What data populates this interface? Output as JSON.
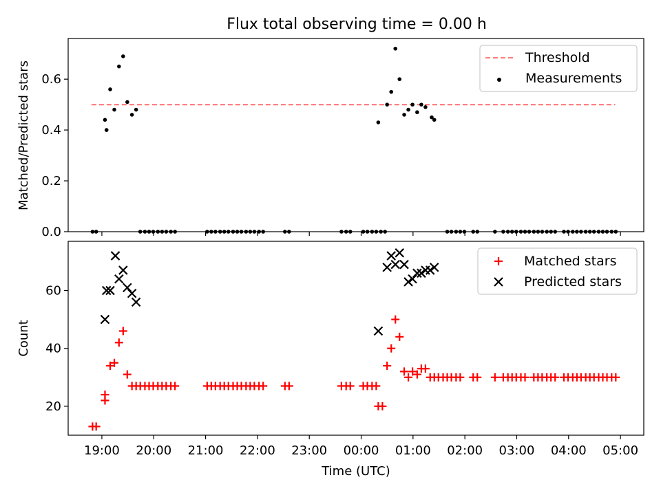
{
  "chart_data": [
    {
      "type": "scatter",
      "title": "Flux total observing time = 0.00 h",
      "xlabel": "",
      "ylabel": "Matched/Predicted stars",
      "ylim": [
        0,
        0.76
      ],
      "yticks": [
        0.0,
        0.2,
        0.4,
        0.6
      ],
      "x_unit": "hours after 00:00 UTC of first night",
      "xlim": [
        18.35,
        29.45
      ],
      "xticks": [
        19,
        20,
        21,
        22,
        23,
        24,
        25,
        26,
        27,
        28,
        29
      ],
      "xtick_labels": [
        "",
        "",
        "",
        "",
        "",
        "",
        "",
        "",
        "",
        "",
        ""
      ],
      "legend": {
        "placement": "top-right",
        "entries": [
          "Threshold",
          "Measurements"
        ]
      },
      "threshold": {
        "name": "Threshold",
        "y": 0.5,
        "x_start": 18.8,
        "x_end": 28.9,
        "color": "#ff7f7f",
        "style": "dashed"
      },
      "series": [
        {
          "name": "Measurements",
          "color": "#000000",
          "marker": "dot",
          "points": [
            [
              18.82,
              0
            ],
            [
              18.89,
              0
            ],
            [
              19.06,
              0.44
            ],
            [
              19.09,
              0.4
            ],
            [
              19.16,
              0.56
            ],
            [
              19.24,
              0.48
            ],
            [
              19.33,
              0.65
            ],
            [
              19.41,
              0.69
            ],
            [
              19.49,
              0.51
            ],
            [
              19.58,
              0.46
            ],
            [
              19.66,
              0.48
            ],
            [
              19.74,
              0
            ],
            [
              19.83,
              0
            ],
            [
              19.91,
              0
            ],
            [
              19.99,
              0
            ],
            [
              20.08,
              0
            ],
            [
              20.16,
              0
            ],
            [
              20.24,
              0
            ],
            [
              20.33,
              0
            ],
            [
              20.41,
              0
            ],
            [
              21.03,
              0
            ],
            [
              21.11,
              0
            ],
            [
              21.19,
              0
            ],
            [
              21.28,
              0
            ],
            [
              21.36,
              0
            ],
            [
              21.44,
              0
            ],
            [
              21.53,
              0
            ],
            [
              21.61,
              0
            ],
            [
              21.69,
              0
            ],
            [
              21.78,
              0
            ],
            [
              21.86,
              0
            ],
            [
              21.94,
              0
            ],
            [
              22.03,
              0
            ],
            [
              22.11,
              0
            ],
            [
              22.53,
              0
            ],
            [
              22.61,
              0
            ],
            [
              23.62,
              0
            ],
            [
              23.71,
              0
            ],
            [
              23.79,
              0
            ],
            [
              24.04,
              0
            ],
            [
              24.12,
              0
            ],
            [
              24.21,
              0
            ],
            [
              24.29,
              0
            ],
            [
              24.33,
              0.43
            ],
            [
              24.38,
              0
            ],
            [
              24.46,
              0
            ],
            [
              24.5,
              0.5
            ],
            [
              24.58,
              0.55
            ],
            [
              24.66,
              0.72
            ],
            [
              24.74,
              0.6
            ],
            [
              24.83,
              0.46
            ],
            [
              24.91,
              0.48
            ],
            [
              24.99,
              0.5
            ],
            [
              25.08,
              0.47
            ],
            [
              25.16,
              0.5
            ],
            [
              25.24,
              0.49
            ],
            [
              25.36,
              0.45
            ],
            [
              25.41,
              0.44
            ],
            [
              25.66,
              0
            ],
            [
              25.74,
              0
            ],
            [
              25.83,
              0
            ],
            [
              25.91,
              0
            ],
            [
              25.99,
              0
            ],
            [
              26.16,
              0
            ],
            [
              26.24,
              0
            ],
            [
              26.58,
              0
            ],
            [
              26.74,
              0
            ],
            [
              26.83,
              0
            ],
            [
              26.91,
              0
            ],
            [
              26.99,
              0
            ],
            [
              27.08,
              0
            ],
            [
              27.16,
              0
            ],
            [
              27.24,
              0
            ],
            [
              27.33,
              0
            ],
            [
              27.41,
              0
            ],
            [
              27.49,
              0
            ],
            [
              27.58,
              0
            ],
            [
              27.66,
              0
            ],
            [
              27.74,
              0
            ],
            [
              27.91,
              0
            ],
            [
              27.99,
              0
            ],
            [
              28.08,
              0
            ],
            [
              28.16,
              0
            ],
            [
              28.24,
              0
            ],
            [
              28.33,
              0
            ],
            [
              28.41,
              0
            ],
            [
              28.49,
              0
            ],
            [
              28.58,
              0
            ],
            [
              28.66,
              0
            ],
            [
              28.74,
              0
            ],
            [
              28.83,
              0
            ],
            [
              28.91,
              0
            ]
          ]
        }
      ]
    },
    {
      "type": "scatter",
      "title": "",
      "xlabel": "Time (UTC)",
      "ylabel": "Count",
      "ylim": [
        10,
        77
      ],
      "yticks": [
        20,
        40,
        60
      ],
      "x_unit": "hours after 00:00 UTC of first night",
      "xlim": [
        18.35,
        29.45
      ],
      "xticks": [
        19,
        20,
        21,
        22,
        23,
        24,
        25,
        26,
        27,
        28,
        29
      ],
      "xtick_labels": [
        "19:00",
        "20:00",
        "21:00",
        "22:00",
        "23:00",
        "00:00",
        "01:00",
        "02:00",
        "03:00",
        "04:00",
        "05:00"
      ],
      "legend": {
        "placement": "top-right",
        "entries": [
          "Matched stars",
          "Predicted stars"
        ]
      },
      "series": [
        {
          "name": "Matched stars",
          "color": "#ff0000",
          "marker": "plus",
          "points": [
            [
              18.82,
              13
            ],
            [
              18.89,
              13
            ],
            [
              19.06,
              24
            ],
            [
              19.06,
              22
            ],
            [
              19.16,
              34
            ],
            [
              19.24,
              35
            ],
            [
              19.33,
              42
            ],
            [
              19.41,
              46
            ],
            [
              19.49,
              31
            ],
            [
              19.58,
              27
            ],
            [
              19.66,
              27
            ],
            [
              19.74,
              27
            ],
            [
              19.83,
              27
            ],
            [
              19.91,
              27
            ],
            [
              19.99,
              27
            ],
            [
              20.08,
              27
            ],
            [
              20.16,
              27
            ],
            [
              20.24,
              27
            ],
            [
              20.33,
              27
            ],
            [
              20.41,
              27
            ],
            [
              21.03,
              27
            ],
            [
              21.11,
              27
            ],
            [
              21.19,
              27
            ],
            [
              21.28,
              27
            ],
            [
              21.36,
              27
            ],
            [
              21.44,
              27
            ],
            [
              21.53,
              27
            ],
            [
              21.61,
              27
            ],
            [
              21.69,
              27
            ],
            [
              21.78,
              27
            ],
            [
              21.86,
              27
            ],
            [
              21.94,
              27
            ],
            [
              22.03,
              27
            ],
            [
              22.11,
              27
            ],
            [
              22.53,
              27
            ],
            [
              22.61,
              27
            ],
            [
              23.62,
              27
            ],
            [
              23.71,
              27
            ],
            [
              23.79,
              27
            ],
            [
              24.04,
              27
            ],
            [
              24.12,
              27
            ],
            [
              24.21,
              27
            ],
            [
              24.29,
              27
            ],
            [
              24.33,
              20
            ],
            [
              24.41,
              20
            ],
            [
              24.5,
              34
            ],
            [
              24.58,
              40
            ],
            [
              24.66,
              50
            ],
            [
              24.74,
              44
            ],
            [
              24.83,
              32
            ],
            [
              24.91,
              30
            ],
            [
              24.99,
              32
            ],
            [
              25.08,
              31
            ],
            [
              25.16,
              33
            ],
            [
              25.24,
              33
            ],
            [
              25.33,
              30
            ],
            [
              25.41,
              30
            ],
            [
              25.49,
              30
            ],
            [
              25.58,
              30
            ],
            [
              25.66,
              30
            ],
            [
              25.74,
              30
            ],
            [
              25.83,
              30
            ],
            [
              25.91,
              30
            ],
            [
              26.16,
              30
            ],
            [
              26.24,
              30
            ],
            [
              26.58,
              30
            ],
            [
              26.74,
              30
            ],
            [
              26.83,
              30
            ],
            [
              26.91,
              30
            ],
            [
              26.99,
              30
            ],
            [
              27.08,
              30
            ],
            [
              27.16,
              30
            ],
            [
              27.33,
              30
            ],
            [
              27.41,
              30
            ],
            [
              27.49,
              30
            ],
            [
              27.58,
              30
            ],
            [
              27.66,
              30
            ],
            [
              27.74,
              30
            ],
            [
              27.91,
              30
            ],
            [
              27.99,
              30
            ],
            [
              28.08,
              30
            ],
            [
              28.16,
              30
            ],
            [
              28.24,
              30
            ],
            [
              28.33,
              30
            ],
            [
              28.41,
              30
            ],
            [
              28.49,
              30
            ],
            [
              28.58,
              30
            ],
            [
              28.66,
              30
            ],
            [
              28.74,
              30
            ],
            [
              28.83,
              30
            ],
            [
              28.91,
              30
            ]
          ]
        },
        {
          "name": "Predicted stars",
          "color": "#000000",
          "marker": "x",
          "points": [
            [
              19.06,
              50
            ],
            [
              19.09,
              60
            ],
            [
              19.16,
              60
            ],
            [
              19.26,
              72
            ],
            [
              19.33,
              64
            ],
            [
              19.41,
              67
            ],
            [
              19.49,
              61
            ],
            [
              19.58,
              59
            ],
            [
              19.66,
              56
            ],
            [
              24.33,
              46
            ],
            [
              24.5,
              68
            ],
            [
              24.58,
              72
            ],
            [
              24.66,
              69
            ],
            [
              24.74,
              73
            ],
            [
              24.83,
              69
            ],
            [
              24.91,
              63
            ],
            [
              24.99,
              64
            ],
            [
              25.08,
              66
            ],
            [
              25.16,
              66
            ],
            [
              25.24,
              67
            ],
            [
              25.33,
              67
            ],
            [
              25.41,
              68
            ]
          ]
        }
      ]
    }
  ]
}
